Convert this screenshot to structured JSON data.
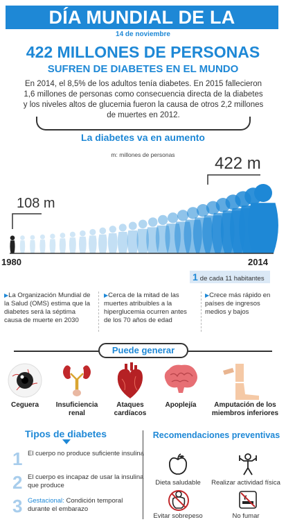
{
  "header": {
    "title": "DÍA MUNDIAL DE LA DIABETES",
    "date": "14 de noviembre"
  },
  "headline": {
    "number": "422 MILLONES DE PERSONAS",
    "sub": "SUFREN DE DIABETES EN EL MUNDO",
    "intro": "En 2014, el 8,5% de los adultos tenía diabetes. En 2015 fallecieron 1,6 millones de personas como consecuencia directa de la diabetes y los niveles altos de glucemia fueron la causa de otros 2,2 millones de muertes en 2012."
  },
  "growth": {
    "title": "La diabetes va en aumento",
    "legend": "m: millones de personas",
    "start_label": "108 m",
    "end_label": "422 m",
    "start_year": "1980",
    "end_year": "2014",
    "ratio_number": "1",
    "ratio_text": "de cada 11 habitantes"
  },
  "chart_data": {
    "type": "bar",
    "categories": [
      "1980",
      "2014"
    ],
    "values": [
      108,
      422
    ],
    "ylabel": "m: millones de personas"
  },
  "facts": [
    "La Organización Mundial de la Salud (OMS) estima que la diabetes será la séptima causa de muerte en 2030",
    "Cerca de la mitad de las muertes atribuibles a la hiperglucemia ocurren antes de los 70 años de edad",
    "Crece más rápido en países de ingresos medios y bajos"
  ],
  "consequences": {
    "title": "Puede generar",
    "items": [
      {
        "label": "Ceguera",
        "icon": "eye-icon"
      },
      {
        "label": "Insuficiencia renal",
        "icon": "kidney-icon"
      },
      {
        "label": "Ataques cardíacos",
        "icon": "heart-icon"
      },
      {
        "label": "Apoplejía",
        "icon": "brain-icon"
      },
      {
        "label": "Amputación de los miembros inferiores",
        "icon": "leg-icon"
      }
    ]
  },
  "types": {
    "title": "Tipos de diabetes",
    "items": [
      {
        "num": "1",
        "text": "El cuerpo no produce suficiente insulina"
      },
      {
        "num": "2",
        "text": "El cuerpo es incapaz de usar la insulina que produce"
      },
      {
        "num": "3",
        "bold": "Gestacional:",
        "text": " Condición temporal durante el embarazo"
      }
    ]
  },
  "recommendations": {
    "title": "Recomendaciones preventivas",
    "items": [
      {
        "label": "Dieta saludable",
        "icon": "apple-icon"
      },
      {
        "label": "Realizar actividad física",
        "icon": "exercise-icon"
      },
      {
        "label": "Evitar sobrepeso",
        "icon": "no-overweight-icon"
      },
      {
        "label": "No fumar",
        "icon": "no-smoking-icon"
      }
    ]
  },
  "colors": {
    "accent": "#1e88d6",
    "light_accent": "#a8cdec",
    "dark": "#333333"
  }
}
